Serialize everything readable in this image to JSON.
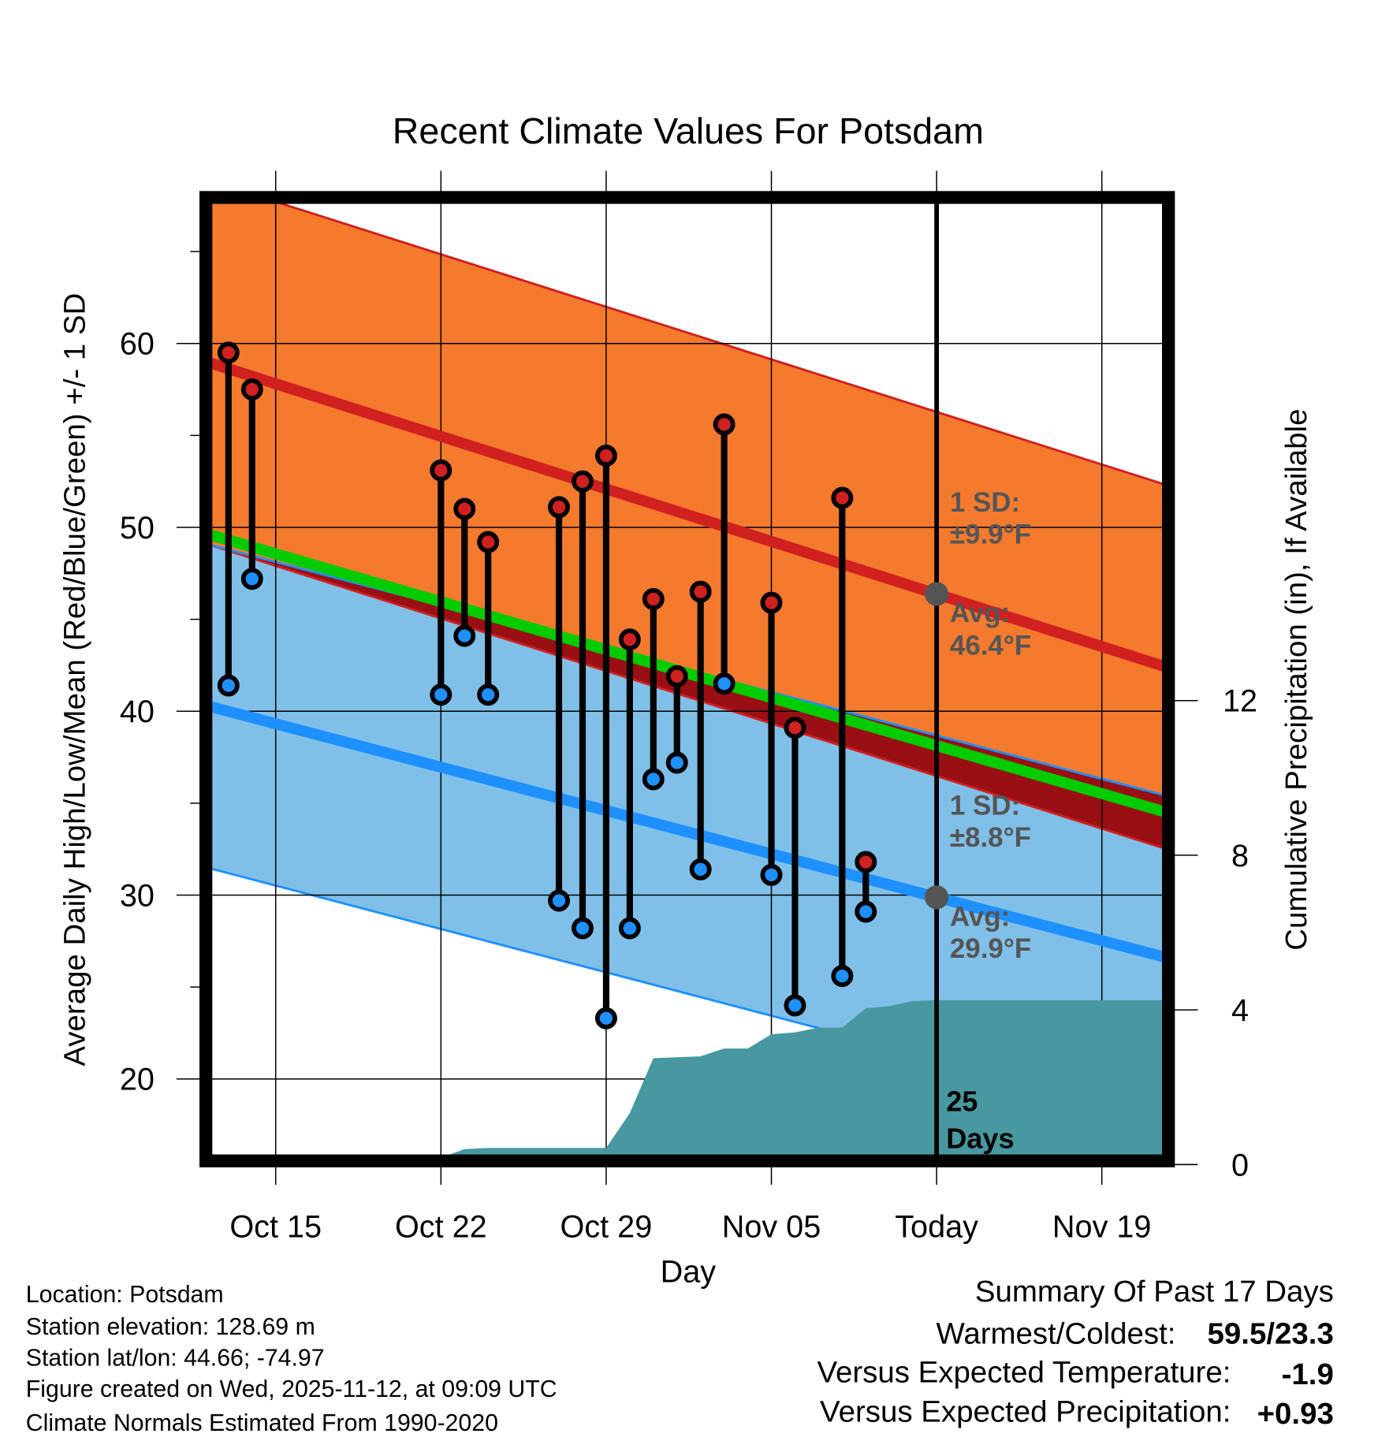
{
  "chart_data": {
    "type": "line",
    "title": "Recent Climate Values For Potsdam",
    "xlabel": "Day",
    "ylabel": "Average Daily High/Low/Mean (Red/Blue/Green) +/- 1 SD",
    "y2label": "Cumulative Precipitation (in), If Available",
    "x_unit": "days since Oct 15",
    "xlim": [
      -2.92,
      37.74
    ],
    "ylim": [
      15.65,
      67.9
    ],
    "y2lim": [
      0,
      16.3
    ],
    "x_ticks": [
      {
        "day": 0,
        "label": "Oct 15"
      },
      {
        "day": 7,
        "label": "Oct 22"
      },
      {
        "day": 14,
        "label": "Oct 29"
      },
      {
        "day": 21,
        "label": "Nov 05"
      },
      {
        "day": 28,
        "label": "Today"
      },
      {
        "day": 35,
        "label": "Nov 19"
      }
    ],
    "y_ticks": [
      "20",
      "30",
      "40",
      "50",
      "60"
    ],
    "y2_ticks": [
      "0",
      "4",
      "8",
      "12"
    ],
    "today_day": 28,
    "normals": {
      "high_avg": {
        "start": 59.0,
        "end": 42.4
      },
      "low_avg": {
        "start": 40.3,
        "end": 26.6
      },
      "high_sd": 9.9,
      "low_sd": 8.8
    },
    "observations": [
      {
        "day": -2,
        "high": 59.5,
        "low": 41.4
      },
      {
        "day": -1,
        "high": 57.5,
        "low": 47.2
      },
      {
        "day": 7,
        "high": 53.1,
        "low": 40.9
      },
      {
        "day": 8,
        "high": 51.0,
        "low": 44.1
      },
      {
        "day": 9,
        "high": 49.2,
        "low": 40.9
      },
      {
        "day": 12,
        "high": 51.1,
        "low": 29.7
      },
      {
        "day": 13,
        "high": 52.5,
        "low": 28.2
      },
      {
        "day": 14,
        "high": 53.9,
        "low": 23.3
      },
      {
        "day": 15,
        "high": 43.9,
        "low": 28.2
      },
      {
        "day": 16,
        "high": 46.1,
        "low": 36.3
      },
      {
        "day": 17,
        "high": 41.9,
        "low": 37.2
      },
      {
        "day": 18,
        "high": 46.5,
        "low": 31.4
      },
      {
        "day": 19,
        "high": 55.6,
        "low": 41.5
      },
      {
        "day": 21,
        "high": 45.9,
        "low": 31.1
      },
      {
        "day": 22,
        "high": 39.1,
        "low": 24.0
      },
      {
        "day": 24,
        "high": 51.6,
        "low": 25.6
      },
      {
        "day": 25,
        "high": 31.8,
        "low": 29.1
      }
    ],
    "precip_cumulative": [
      {
        "day": -2.92,
        "value": 0
      },
      {
        "day": 6.2,
        "value": 0
      },
      {
        "day": 8,
        "value": 0.4
      },
      {
        "day": 9,
        "value": 0.43
      },
      {
        "day": 14,
        "value": 0.43
      },
      {
        "day": 15,
        "value": 1.33
      },
      {
        "day": 16,
        "value": 2.75
      },
      {
        "day": 18,
        "value": 2.8
      },
      {
        "day": 19,
        "value": 3.0
      },
      {
        "day": 20,
        "value": 3.0
      },
      {
        "day": 21,
        "value": 3.37
      },
      {
        "day": 22,
        "value": 3.42
      },
      {
        "day": 23,
        "value": 3.54
      },
      {
        "day": 24,
        "value": 3.54
      },
      {
        "day": 25,
        "value": 4.04
      },
      {
        "day": 26,
        "value": 4.1
      },
      {
        "day": 27,
        "value": 4.23
      },
      {
        "day": 28,
        "value": 4.25
      },
      {
        "day": 37.74,
        "value": 4.25
      }
    ],
    "annotations": {
      "high_sd_label": "1 SD:",
      "high_sd_value": "±9.9°F",
      "high_avg_label": "Avg:",
      "high_avg_value": "46.4°F",
      "low_sd_label": "1 SD:",
      "low_sd_value": "±8.8°F",
      "low_avg_label": "Avg:",
      "low_avg_value": "29.9°F",
      "days_count": "25",
      "days_label": "Days"
    },
    "colors": {
      "high_band": "#f47a2e",
      "low_band": "#80c0e8",
      "overlap": "#990f14",
      "high_line": "#d02020",
      "low_line": "#1e90ff",
      "mean_line": "#00cc00",
      "precip": "#4798a0",
      "annotation": "#555555"
    }
  },
  "info": {
    "location": "Location: Potsdam",
    "elevation": "Station elevation: 128.69 m",
    "latlon": "Station lat/lon: 44.66; -74.97",
    "created": "Figure created on Wed, 2025-11-12, at 09:09 UTC",
    "normals": "Climate Normals Estimated From 1990-2020"
  },
  "summary": {
    "title": "Summary Of Past 17 Days",
    "warmest_label": "Warmest/Coldest:",
    "warmest_value": "59.5/23.3",
    "temp_label": "Versus Expected Temperature:",
    "temp_value": "-1.9",
    "temp_color": "#1e90ff",
    "precip_label": "Versus Expected Precipitation:",
    "precip_value": "+0.93",
    "precip_color": "#22bb22"
  }
}
